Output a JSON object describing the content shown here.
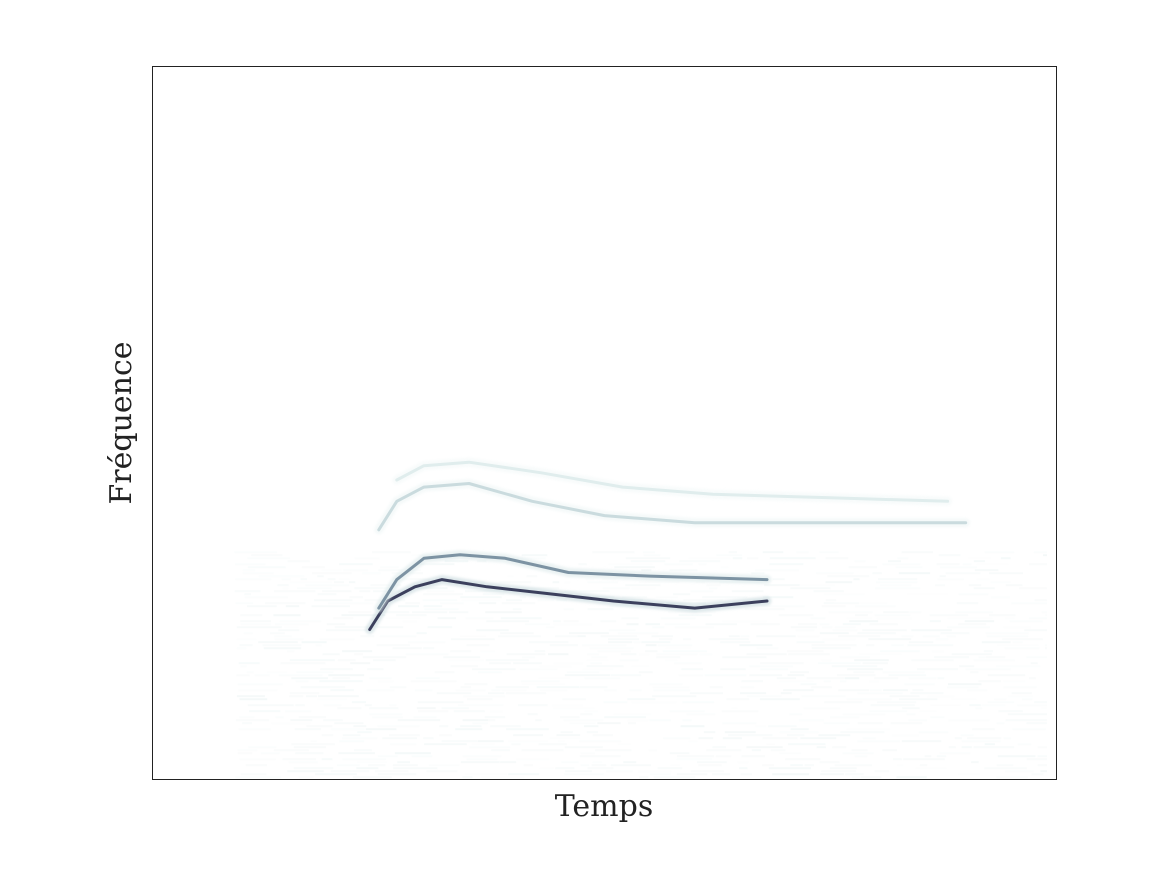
{
  "chart_data": {
    "type": "heatmap",
    "title": "",
    "xlabel": "Temps",
    "ylabel": "Fréquence",
    "xticks": [],
    "yticks": [],
    "grid": false,
    "colormap": [
      "#ffffff",
      "#e6f1f1",
      "#b7cdd2",
      "#6f8597",
      "#2f2f4f"
    ],
    "xlim": [
      0,
      1
    ],
    "ylim": [
      0,
      1
    ],
    "noise_band": {
      "x": [
        0.09,
        0.99
      ],
      "y": [
        0.0,
        0.32
      ],
      "intensity": 0.12
    },
    "series": [
      {
        "name": "",
        "intensity": 0.95,
        "points": [
          [
            0.24,
            0.21
          ],
          [
            0.26,
            0.25
          ],
          [
            0.29,
            0.27
          ],
          [
            0.32,
            0.28
          ],
          [
            0.37,
            0.27
          ],
          [
            0.44,
            0.26
          ],
          [
            0.51,
            0.25
          ],
          [
            0.6,
            0.24
          ],
          [
            0.68,
            0.25
          ]
        ]
      },
      {
        "name": "",
        "intensity": 0.7,
        "points": [
          [
            0.25,
            0.24
          ],
          [
            0.27,
            0.28
          ],
          [
            0.3,
            0.31
          ],
          [
            0.34,
            0.315
          ],
          [
            0.39,
            0.31
          ],
          [
            0.46,
            0.29
          ],
          [
            0.55,
            0.285
          ],
          [
            0.68,
            0.28
          ]
        ]
      },
      {
        "name": "",
        "intensity": 0.4,
        "points": [
          [
            0.25,
            0.35
          ],
          [
            0.27,
            0.39
          ],
          [
            0.3,
            0.41
          ],
          [
            0.35,
            0.415
          ],
          [
            0.42,
            0.39
          ],
          [
            0.5,
            0.37
          ],
          [
            0.6,
            0.36
          ],
          [
            0.75,
            0.36
          ],
          [
            0.9,
            0.36
          ]
        ]
      },
      {
        "name": "",
        "intensity": 0.28,
        "points": [
          [
            0.27,
            0.42
          ],
          [
            0.3,
            0.44
          ],
          [
            0.35,
            0.445
          ],
          [
            0.43,
            0.43
          ],
          [
            0.52,
            0.41
          ],
          [
            0.62,
            0.4
          ],
          [
            0.75,
            0.395
          ],
          [
            0.88,
            0.39
          ]
        ]
      }
    ]
  }
}
